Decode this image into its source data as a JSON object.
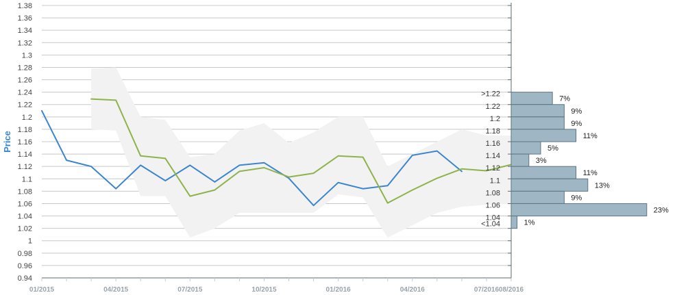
{
  "chart_data": {
    "type": "line",
    "ylabel": "Price",
    "ylim": [
      0.94,
      1.38
    ],
    "y_ticks": [
      "0.94",
      "0.96",
      "0.98",
      "1",
      "1.02",
      "1.04",
      "1.06",
      "1.08",
      "1.1",
      "1.12",
      "1.14",
      "1.16",
      "1.18",
      "1.2",
      "1.22",
      "1.24",
      "1.26",
      "1.28",
      "1.3",
      "1.32",
      "1.34",
      "1.36",
      "1.38"
    ],
    "x_ticks": [
      "01/2015",
      "04/2015",
      "07/2015",
      "10/2015",
      "01/2016",
      "04/2016",
      "07/2016",
      "08/2016"
    ],
    "x_start": "2015-01",
    "x_end": "2016-08",
    "grid": true,
    "colors": {
      "actual": "#3a85d0",
      "forecast": "#8db34a",
      "band": "#f2f2f2",
      "bar_fill": "#9fb7c4",
      "bar_stroke": "#5c7482",
      "grid": "#c8c8c8",
      "axis": "#5a6a74",
      "ylabel": "#3a85d0"
    },
    "series": [
      {
        "key": "actual",
        "x": [
          "2015-01",
          "2015-02",
          "2015-03",
          "2015-04",
          "2015-05",
          "2015-06",
          "2015-07",
          "2015-08",
          "2015-09",
          "2015-10",
          "2015-11",
          "2015-12",
          "2016-01",
          "2016-02",
          "2016-03",
          "2016-04",
          "2016-05",
          "2016-06"
        ],
        "values": [
          1.21,
          1.13,
          1.12,
          1.084,
          1.122,
          1.097,
          1.122,
          1.095,
          1.122,
          1.126,
          1.101,
          1.057,
          1.094,
          1.084,
          1.089,
          1.138,
          1.145,
          1.112
        ]
      },
      {
        "key": "forecast",
        "x": [
          "2015-03",
          "2015-04",
          "2015-05",
          "2015-06",
          "2015-07",
          "2015-08",
          "2015-09",
          "2015-10",
          "2015-11",
          "2015-12",
          "2016-01",
          "2016-02",
          "2016-03",
          "2016-04",
          "2016-05",
          "2016-06",
          "2016-07",
          "2016-08"
        ],
        "values": [
          1.229,
          1.227,
          1.137,
          1.133,
          1.072,
          1.082,
          1.112,
          1.118,
          1.103,
          1.109,
          1.137,
          1.135,
          1.061,
          1.082,
          1.101,
          1.116,
          1.113,
          1.123
        ]
      }
    ],
    "band": {
      "x": [
        "2015-03",
        "2015-04",
        "2015-05",
        "2015-06",
        "2015-07",
        "2015-08",
        "2015-09",
        "2015-10",
        "2015-11",
        "2015-12",
        "2016-01",
        "2016-02",
        "2016-03",
        "2016-04",
        "2016-05",
        "2016-06",
        "2016-07",
        "2016-08"
      ],
      "upper": [
        1.278,
        1.28,
        1.2,
        1.195,
        1.135,
        1.14,
        1.178,
        1.19,
        1.158,
        1.175,
        1.2,
        1.2,
        1.12,
        1.14,
        1.16,
        1.18,
        1.17,
        1.17
      ],
      "lower": [
        1.18,
        1.178,
        1.072,
        1.072,
        1.005,
        1.02,
        1.045,
        1.045,
        1.045,
        1.045,
        1.075,
        1.07,
        1.005,
        1.025,
        1.045,
        1.055,
        1.058,
        1.06
      ]
    },
    "distribution": [
      {
        "label": ">1.22",
        "y": 1.23,
        "pct": 7,
        "pct_label": "7%"
      },
      {
        "label": "1.22",
        "y": 1.21,
        "pct": 9,
        "pct_label": "9%"
      },
      {
        "label": "1.2",
        "y": 1.19,
        "pct": 9,
        "pct_label": "9%"
      },
      {
        "label": "1.18",
        "y": 1.17,
        "pct": 11,
        "pct_label": "11%"
      },
      {
        "label": "1.16",
        "y": 1.15,
        "pct": 5,
        "pct_label": "5%"
      },
      {
        "label": "1.14",
        "y": 1.13,
        "pct": 3,
        "pct_label": "3%"
      },
      {
        "label": "1.12",
        "y": 1.11,
        "pct": 11,
        "pct_label": "11%"
      },
      {
        "label": "1.1",
        "y": 1.09,
        "pct": 13,
        "pct_label": "13%"
      },
      {
        "label": "1.08",
        "y": 1.07,
        "pct": 9,
        "pct_label": "9%"
      },
      {
        "label": "1.06",
        "y": 1.05,
        "pct": 23,
        "pct_label": "23%"
      },
      {
        "label": "1.04",
        "y": 1.03,
        "pct": 1,
        "pct_label": "1%"
      },
      {
        "label": "<1.04",
        "y": 1.02,
        "pct": null,
        "pct_label": ""
      }
    ]
  }
}
